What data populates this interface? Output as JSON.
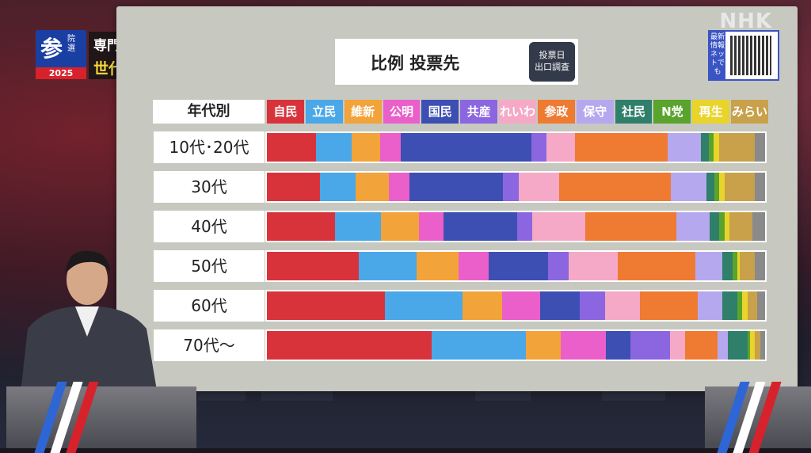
{
  "badge": {
    "big": "参",
    "small": "院選",
    "year": "2025"
  },
  "headline": {
    "line1": "専門家に聞く",
    "line2": "世代間で支持に差"
  },
  "logo": "NHK",
  "title": {
    "text": "比例 投票先",
    "tag_line1": "投票日",
    "tag_line2": "出口調査"
  },
  "qr": {
    "label": "最新情報ネットでも"
  },
  "colors": {
    "board": "#c7c9c1",
    "accent_red": "#d7222b",
    "badge_blue": "#1a3fa3",
    "headline_yellow": "#f3d83a"
  },
  "chart_data": {
    "type": "bar",
    "stacked": true,
    "orientation": "horizontal",
    "title": "比例 投票先",
    "header_label": "年代別",
    "categories": [
      "10代･20代",
      "30代",
      "40代",
      "50代",
      "60代",
      "70代〜"
    ],
    "series": [
      {
        "name": "自民",
        "color": "#d8333b",
        "values": [
          9.5,
          10.5,
          13.5,
          18.5,
          23.5,
          33.0
        ]
      },
      {
        "name": "立民",
        "color": "#4aa7e8",
        "values": [
          7.0,
          7.0,
          9.0,
          11.5,
          15.5,
          19.0
        ]
      },
      {
        "name": "維新",
        "color": "#f2a33a",
        "values": [
          5.5,
          6.5,
          7.5,
          8.5,
          8.0,
          7.0
        ]
      },
      {
        "name": "公明",
        "color": "#ea5fc9",
        "values": [
          4.0,
          4.0,
          5.0,
          6.0,
          7.5,
          9.0
        ]
      },
      {
        "name": "国民",
        "color": "#3d4fb3",
        "values": [
          25.5,
          18.5,
          14.5,
          12.0,
          8.0,
          5.0
        ]
      },
      {
        "name": "共産",
        "color": "#8b66e0",
        "values": [
          3.0,
          3.0,
          3.0,
          4.0,
          5.0,
          8.0
        ]
      },
      {
        "name": "れいわ",
        "color": "#f5a9c6",
        "values": [
          5.5,
          8.0,
          10.5,
          10.0,
          7.0,
          3.0
        ]
      },
      {
        "name": "参政",
        "color": "#ef7a32",
        "values": [
          18.0,
          22.0,
          18.0,
          15.5,
          11.5,
          6.5
        ]
      },
      {
        "name": "保守",
        "color": "#b6a8ee",
        "values": [
          6.5,
          7.0,
          6.5,
          5.5,
          5.0,
          2.0
        ]
      },
      {
        "name": "社民",
        "color": "#2f7f6a",
        "values": [
          1.5,
          1.5,
          2.0,
          2.0,
          3.0,
          4.0
        ]
      },
      {
        "name": "N党",
        "color": "#5aa32d",
        "values": [
          1.0,
          1.0,
          1.0,
          1.0,
          1.0,
          0.5
        ]
      },
      {
        "name": "再生",
        "color": "#e8d42a",
        "values": [
          1.0,
          1.0,
          1.0,
          0.5,
          1.0,
          1.0
        ]
      },
      {
        "name": "みらい",
        "color": "#c9a14a",
        "values": [
          7.0,
          6.0,
          4.5,
          3.0,
          2.0,
          1.0
        ]
      },
      {
        "name": "",
        "color": "#8a8a8a",
        "values": [
          2.0,
          2.0,
          2.5,
          2.0,
          1.5,
          1.0
        ]
      }
    ]
  }
}
